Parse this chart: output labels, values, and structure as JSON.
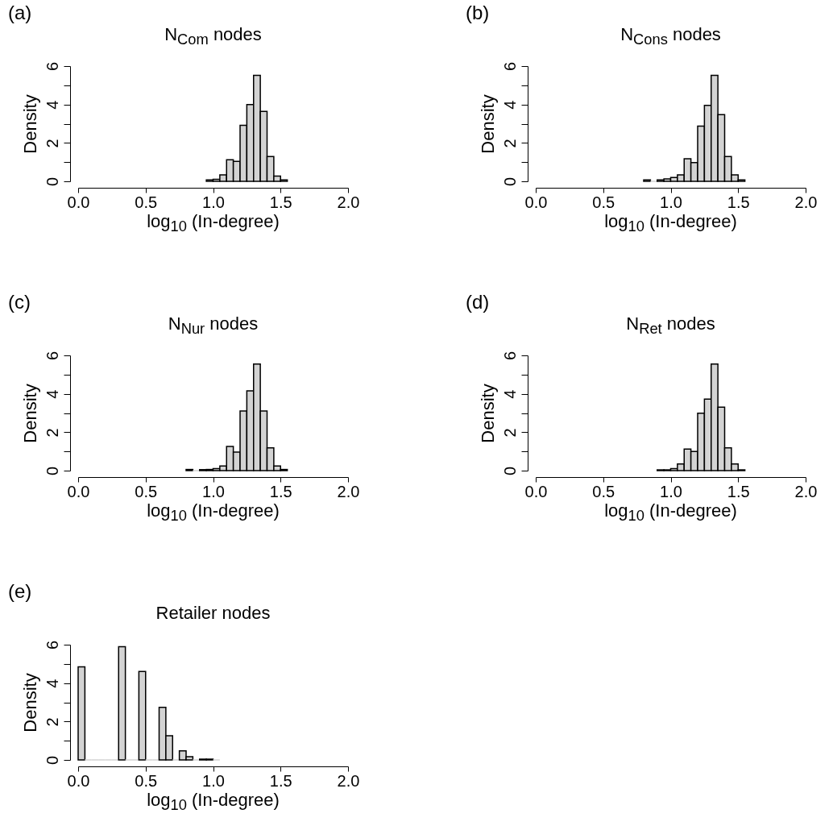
{
  "chart_data": [
    {
      "type": "histogram",
      "title": "N$_{Com}$ nodes",
      "xlabel": "log$_{10}$ (In-degree)",
      "ylabel": "Density",
      "annotations": [
        "(a)"
      ],
      "color": "#d3d3d3",
      "bins": [
        0.95,
        1.0,
        1.05,
        1.1,
        1.15,
        1.2,
        1.25,
        1.3,
        1.35,
        1.4,
        1.45,
        1.5,
        1.55
      ],
      "values": [
        0.07,
        0.11,
        0.34,
        1.12,
        1.04,
        2.92,
        4.0,
        5.52,
        3.64,
        1.29,
        0.27,
        0.07
      ],
      "xlim": [
        0,
        2
      ],
      "xticks": [
        {
          "value": 0,
          "label": "0.0"
        },
        {
          "value": 0.5,
          "label": "0.5"
        },
        {
          "value": 1,
          "label": "1.0"
        },
        {
          "value": 1.5,
          "label": "1.5"
        },
        {
          "value": 2,
          "label": "2.0"
        }
      ],
      "ylim": [
        0,
        6
      ],
      "yticks": [
        0,
        {
          "value": 1,
          "label": null
        },
        2,
        {
          "value": 3,
          "label": null
        },
        4,
        {
          "value": 5,
          "label": null
        },
        6
      ]
    },
    {
      "type": "histogram",
      "title": "N$_{Cons}$ nodes",
      "xlabel": "log$_{10}$ (In-degree)",
      "ylabel": "Density",
      "annotations": [
        "(b)"
      ],
      "color": "#d3d3d3",
      "bins": [
        0.8,
        0.85,
        0.9,
        0.95,
        1.0,
        1.05,
        1.1,
        1.15,
        1.2,
        1.25,
        1.3,
        1.35,
        1.4,
        1.45,
        1.5,
        1.55
      ],
      "values": [
        0.07,
        0,
        0.07,
        0.13,
        0.2,
        0.34,
        1.17,
        0.98,
        2.87,
        3.95,
        5.52,
        3.47,
        1.29,
        0.34,
        0.07
      ],
      "xlim": [
        0,
        2
      ],
      "xticks": [
        {
          "value": 0,
          "label": "0.0"
        },
        {
          "value": 0.5,
          "label": "0.5"
        },
        {
          "value": 1,
          "label": "1.0"
        },
        {
          "value": 1.5,
          "label": "1.5"
        },
        {
          "value": 2,
          "label": "2.0"
        }
      ],
      "ylim": [
        0,
        6
      ],
      "yticks": [
        0,
        {
          "value": 1,
          "label": null
        },
        2,
        {
          "value": 3,
          "label": null
        },
        4,
        {
          "value": 5,
          "label": null
        },
        6
      ]
    },
    {
      "type": "histogram",
      "title": "N$_{Nur}$ nodes",
      "xlabel": "log$_{10}$ (In-degree)",
      "ylabel": "Density",
      "annotations": [
        "(c)"
      ],
      "color": "#d3d3d3",
      "bins": [
        0.8,
        0.85,
        0.9,
        0.95,
        1.0,
        1.05,
        1.1,
        1.15,
        1.2,
        1.25,
        1.3,
        1.35,
        1.4,
        1.45,
        1.5,
        1.55
      ],
      "values": [
        0.06,
        0,
        0.05,
        0.06,
        0.11,
        0.24,
        1.26,
        0.96,
        3.1,
        4.15,
        5.55,
        3.1,
        1.19,
        0.24,
        0.06
      ],
      "xlim": [
        0,
        2
      ],
      "xticks": [
        {
          "value": 0,
          "label": "0.0"
        },
        {
          "value": 0.5,
          "label": "0.5"
        },
        {
          "value": 1,
          "label": "1.0"
        },
        {
          "value": 1.5,
          "label": "1.5"
        },
        {
          "value": 2,
          "label": "2.0"
        }
      ],
      "ylim": [
        0,
        6
      ],
      "yticks": [
        0,
        {
          "value": 1,
          "label": null
        },
        2,
        {
          "value": 3,
          "label": null
        },
        4,
        {
          "value": 5,
          "label": null
        },
        6
      ]
    },
    {
      "type": "histogram",
      "title": "N$_{Ret}$ nodes",
      "xlabel": "log$_{10}$ (In-degree)",
      "ylabel": "Density",
      "annotations": [
        "(d)"
      ],
      "color": "#d3d3d3",
      "bins": [
        0.9,
        0.95,
        1.0,
        1.05,
        1.1,
        1.15,
        1.2,
        1.25,
        1.3,
        1.35,
        1.4,
        1.45,
        1.5,
        1.55
      ],
      "values": [
        0.04,
        0.04,
        0.11,
        0.35,
        1.12,
        1.0,
        2.99,
        3.72,
        5.55,
        3.3,
        1.19,
        0.35,
        0.04
      ],
      "xlim": [
        0,
        2
      ],
      "xticks": [
        {
          "value": 0,
          "label": "0.0"
        },
        {
          "value": 0.5,
          "label": "0.5"
        },
        {
          "value": 1,
          "label": "1.0"
        },
        {
          "value": 1.5,
          "label": "1.5"
        },
        {
          "value": 2,
          "label": "2.0"
        }
      ],
      "ylim": [
        0,
        6
      ],
      "yticks": [
        0,
        {
          "value": 1,
          "label": null
        },
        2,
        {
          "value": 3,
          "label": null
        },
        4,
        {
          "value": 5,
          "label": null
        },
        6
      ]
    },
    {
      "type": "histogram",
      "title": "Retailer nodes",
      "xlabel": "log$_{10}$ (In-degree)",
      "ylabel": "Density",
      "annotations": [
        "(e)"
      ],
      "color": "#d3d3d3",
      "bins": [
        0,
        0.05,
        0.1,
        0.15,
        0.2,
        0.25,
        0.3,
        0.35,
        0.4,
        0.45,
        0.5,
        0.55,
        0.6,
        0.65,
        0.7,
        0.75,
        0.8,
        0.85,
        0.9,
        0.95,
        1.0,
        1.05
      ],
      "values": [
        4.85,
        0,
        0,
        0,
        0,
        0,
        5.9,
        0,
        0,
        4.61,
        0,
        0,
        2.74,
        1.26,
        0,
        0.47,
        0.17,
        0,
        0.04,
        0.04,
        0
      ],
      "xlim": [
        0,
        2
      ],
      "xticks": [
        {
          "value": 0,
          "label": "0.0"
        },
        {
          "value": 0.5,
          "label": "0.5"
        },
        {
          "value": 1,
          "label": "1.0"
        },
        {
          "value": 1.5,
          "label": "1.5"
        },
        {
          "value": 2,
          "label": "2.0"
        }
      ],
      "ylim": [
        0,
        6
      ],
      "yticks": [
        0,
        {
          "value": 1,
          "label": null
        },
        2,
        {
          "value": 3,
          "label": null
        },
        4,
        {
          "value": 5,
          "label": null
        },
        6
      ]
    }
  ]
}
